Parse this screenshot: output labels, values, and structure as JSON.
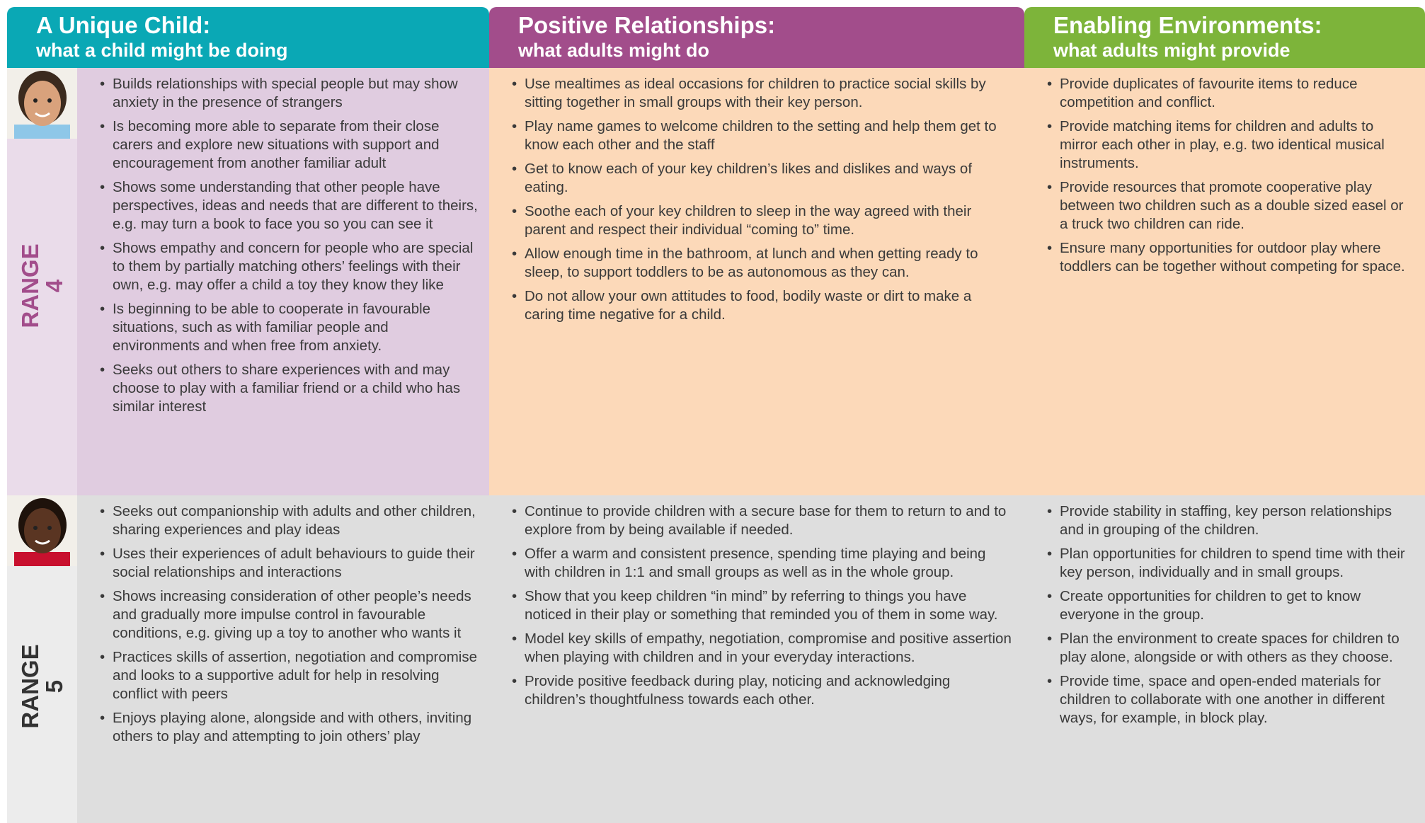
{
  "headers": [
    {
      "title": "A Unique Child:",
      "subtitle": "what a child might be doing"
    },
    {
      "title": "Positive Relationships:",
      "subtitle": "what adults might do"
    },
    {
      "title": "Enabling Environments:",
      "subtitle": "what adults might provide"
    }
  ],
  "rows": [
    {
      "label": "RANGE",
      "number": "4",
      "cells": [
        [
          "Builds relationships with special people but may show anxiety in the presence of strangers",
          "Is becoming more able to separate from their close carers and explore new situations with support and encouragement from another familiar adult",
          "Shows some understanding that other people have perspectives, ideas and needs that are different to theirs, e.g. may turn a book to face you so you can see it",
          "Shows empathy and concern for people who are special to them by partially matching others’ feelings with their own, e.g. may offer a child a toy they know they like",
          "Is beginning to be able to cooperate in favourable situations, such as with familiar people and environments and when free from anxiety.",
          "Seeks out others to share experiences with and may choose to play with a familiar friend or a child who has similar interest"
        ],
        [
          "Use mealtimes as ideal occasions for children to practice social skills by sitting together in small groups with their key person.",
          "Play name games to welcome children to the setting and help them get to know each other and the staff",
          "Get to know each of your key children’s likes and dislikes and ways of eating.",
          "Soothe each of your key children to sleep in the way agreed with their parent and respect their individual “coming to” time.",
          "Allow enough time in the bathroom, at lunch and when getting ready to sleep, to support toddlers to be as autonomous as they can.",
          "Do not allow your own attitudes to food, bodily waste or dirt to make a caring time negative for a child."
        ],
        [
          "Provide duplicates of favourite items to reduce competition and conflict.",
          "Provide matching items for children and adults to mirror each other in play, e.g. two identical musical instruments.",
          "Provide resources that promote cooperative play between two children such as a double sized easel or a truck two children can ride.",
          "Ensure many opportunities for outdoor play where toddlers can be together without competing for space."
        ]
      ]
    },
    {
      "label": "RANGE",
      "number": "5",
      "cells": [
        [
          "Seeks out companionship with adults and other children, sharing experiences and play ideas",
          "Uses their experiences of adult behaviours to guide their social relationships and interactions",
          "Shows increasing consideration of other people’s needs and gradually more impulse control in favourable conditions, e.g. giving up a toy to another who wants it",
          "Practices skills of assertion, negotiation and compromise and looks to a supportive adult for help in resolving conflict with peers",
          "Enjoys playing alone, alongside and with others, inviting others to play and attempting to join others’ play"
        ],
        [
          "Continue to provide children with a secure base for them to return to and to explore from by being available if needed.",
          "Offer a warm and consistent presence, spending time playing and being with children in 1:1 and small groups as well as in the whole group.",
          "Show that you keep children “in mind” by referring to things you have noticed in their play or something that reminded you of them in some way.",
          "Model key skills of empathy, negotiation, compromise and positive assertion when playing with children and in your everyday interactions.",
          "Provide positive feedback during play, noticing and acknowledging children’s thoughtfulness towards each other."
        ],
        [
          "Provide stability in staffing, key person relationships and in grouping of the children.",
          "Plan opportunities for children to spend time with their key person, individually and in small groups.",
          "Create opportunities for children to get to know everyone in the group.",
          "Plan the environment to create spaces for children to play alone, alongside or with others as they choose.",
          "Provide time, space and open-ended materials for children to collaborate with one another in different ways, for example, in block play."
        ]
      ]
    }
  ]
}
